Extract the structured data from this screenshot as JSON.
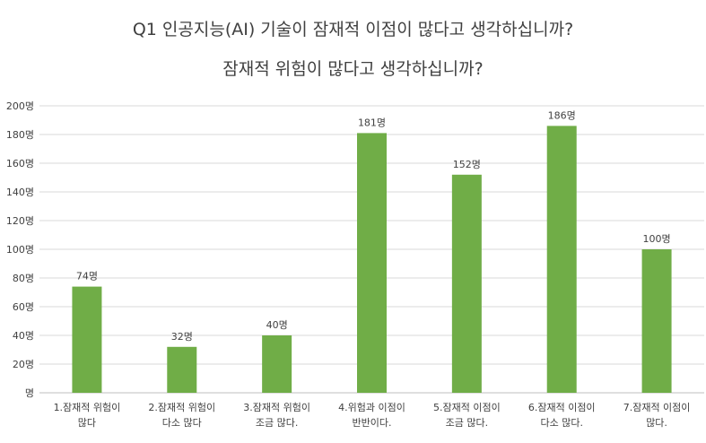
{
  "chart_data": {
    "type": "bar",
    "title_lines": [
      "Q1 인공지능(AI) 기술이 잠재적 이점이 많다고 생각하십니까?",
      "잠재적 위험이 많다고 생각하십니까?"
    ],
    "categories": [
      [
        "1.잠재적 위험이",
        "많다"
      ],
      [
        "2.잠재적 위험이",
        "다소 많다"
      ],
      [
        "3.잠재적 위험이",
        "조금 많다."
      ],
      [
        "4.위험과 이점이",
        "반반이다."
      ],
      [
        "5.잠재적 이점이",
        "조금 많다."
      ],
      [
        "6.잠재적 이점이",
        "다소 많다."
      ],
      [
        "7.잠재적 이점이",
        "많다."
      ]
    ],
    "values": [
      74,
      32,
      40,
      181,
      152,
      186,
      100
    ],
    "data_labels": [
      "74명",
      "32명",
      "40명",
      "181명",
      "152명",
      "186명",
      "100명"
    ],
    "y_ticks": [
      {
        "value": 0,
        "label": "명"
      },
      {
        "value": 20,
        "label": "20명"
      },
      {
        "value": 40,
        "label": "40명"
      },
      {
        "value": 60,
        "label": "60명"
      },
      {
        "value": 80,
        "label": "80명"
      },
      {
        "value": 100,
        "label": "100명"
      },
      {
        "value": 120,
        "label": "120명"
      },
      {
        "value": 140,
        "label": "140명"
      },
      {
        "value": 160,
        "label": "160명"
      },
      {
        "value": 180,
        "label": "180명"
      },
      {
        "value": 200,
        "label": "200명"
      }
    ],
    "ylim": [
      0,
      200
    ],
    "grid": true,
    "legend": "none",
    "colors": {
      "bar": "#70AD47",
      "grid": "#D9D9D9",
      "text": "#404040",
      "axis": "#BFBFBF"
    }
  }
}
